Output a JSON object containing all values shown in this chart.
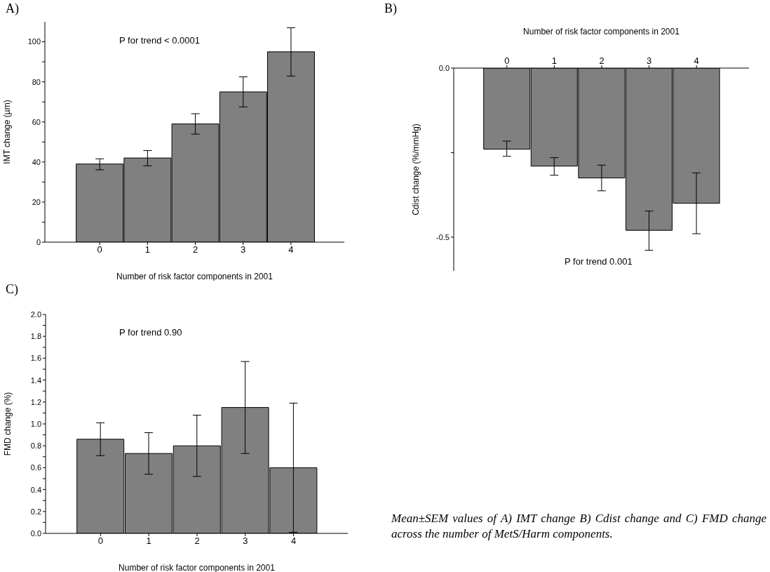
{
  "chart_data": [
    {
      "type": "bar",
      "title": "A)",
      "xlabel": "Number of risk factor components in 2001",
      "ylabel": "IMT change (µm)",
      "categories": [
        "0",
        "1",
        "2",
        "3",
        "4"
      ],
      "values": [
        39,
        42,
        59,
        75,
        95
      ],
      "errors": [
        [
          36.1,
          41.6
        ],
        [
          38.1,
          45.7
        ],
        [
          53.9,
          64.1
        ],
        [
          67.5,
          82.5
        ],
        [
          82.9,
          107
        ]
      ],
      "color": "#808080",
      "ylim": [
        0,
        110
      ],
      "yticks": [
        0,
        {
          "value": 10,
          "label": null
        },
        20,
        {
          "value": 30,
          "label": null
        },
        40,
        {
          "value": 50,
          "label": null
        },
        60,
        {
          "value": 70,
          "label": null
        },
        80,
        {
          "value": 90,
          "label": null
        },
        100
      ],
      "annotations": [
        "P for trend < 0.0001"
      ]
    },
    {
      "type": "bar",
      "title": "B)",
      "xlabel": "Number of risk factor components in 2001",
      "ylabel": "Cdist change (%/mmHg)",
      "categories": [
        "0",
        "1",
        "2",
        "3",
        "4"
      ],
      "values": [
        -0.24,
        -0.29,
        -0.325,
        -0.48,
        -0.4
      ],
      "errors": [
        [
          -0.261,
          -0.216
        ],
        [
          -0.317,
          -0.265
        ],
        [
          -0.363,
          -0.287
        ],
        [
          -0.539,
          -0.423
        ],
        [
          -0.49,
          -0.31
        ]
      ],
      "color": "#808080",
      "ylim": [
        -0.6,
        0
      ],
      "yticks": [
        {
          "value": -0.5,
          "label": "-0.5"
        },
        {
          "value": -0.25,
          "label": null
        },
        {
          "value": 0,
          "label": "0.0"
        }
      ],
      "annotations": [
        "P for trend 0.001"
      ]
    },
    {
      "type": "bar",
      "title": "C)",
      "xlabel": "Number of risk factor components in 2001",
      "ylabel": "FMD change (%)",
      "categories": [
        "0",
        "1",
        "2",
        "3",
        "4"
      ],
      "values": [
        0.86,
        0.73,
        0.8,
        1.15,
        0.6
      ],
      "errors": [
        [
          0.71,
          1.01
        ],
        [
          0.54,
          0.92
        ],
        [
          0.52,
          1.08
        ],
        [
          0.73,
          1.57
        ],
        [
          0.01,
          1.19
        ]
      ],
      "color": "#808080",
      "ylim": [
        0,
        2
      ],
      "yticks": [
        {
          "value": 0,
          "label": "0.0"
        },
        {
          "value": 0.1,
          "label": null
        },
        0.2,
        {
          "value": 0.3,
          "label": null
        },
        0.4,
        {
          "value": 0.5,
          "label": null
        },
        0.6,
        {
          "value": 0.7,
          "label": null
        },
        0.8,
        {
          "value": 0.9,
          "label": null
        },
        {
          "value": 1,
          "label": "1.0"
        },
        {
          "value": 1.1,
          "label": null
        },
        1.2,
        {
          "value": 1.3,
          "label": null
        },
        1.4,
        {
          "value": 1.5,
          "label": null
        },
        1.6,
        {
          "value": 1.7,
          "label": null
        },
        1.8,
        {
          "value": 1.9,
          "label": null
        },
        {
          "value": 2,
          "label": "2.0"
        }
      ],
      "annotations": [
        "P for trend 0.90"
      ]
    },
    {
      "type": "other",
      "annotations": [
        "Mean±SEM values of A) IMT change B) Cdist change and C) FMD change across the number of MetS/Harm components."
      ]
    }
  ]
}
